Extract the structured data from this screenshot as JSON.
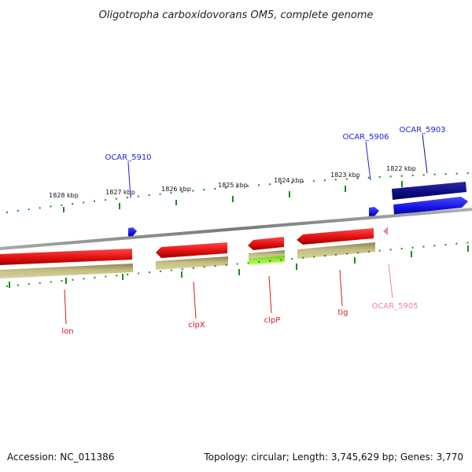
{
  "title": "Oligotropha carboxidovorans OM5, complete genome",
  "kbp_labels": [
    "1828 kbp",
    "1827 kbp",
    "1826 kbp",
    "1825 kbp",
    "1824 kbp",
    "1823 kbp",
    "1822 kbp"
  ],
  "genes_forward": [
    {
      "name": "OCAR_5910",
      "color": "#1f1fd6"
    },
    {
      "name": "OCAR_5906",
      "color": "#1f1fd6"
    },
    {
      "name": "OCAR_5903",
      "color": "#0b0b8a"
    }
  ],
  "genes_reverse": [
    {
      "name": "lon",
      "color": "#e01818"
    },
    {
      "name": "clpX",
      "color": "#e01818"
    },
    {
      "name": "clpP",
      "color": "#e01818"
    },
    {
      "name": "tig",
      "color": "#e01818"
    },
    {
      "name": "OCAR_5905",
      "color": "#f080b0"
    }
  ],
  "colors": {
    "forward_gene": "#1f1fd6",
    "forward_gene_dark": "#0b0b8a",
    "reverse_gene": "#e01818",
    "pseudo_gene": "#f080b0",
    "cds_olive": "#b5ad70",
    "cds_green": "#8be02a",
    "backbone": "#8c8c8c",
    "ticks": "#1e8a1e"
  },
  "footer": {
    "accession": "Accession: NC_011386",
    "summary": "Topology: circular; Length: 3,745,629 bp; Genes: 3,770"
  }
}
